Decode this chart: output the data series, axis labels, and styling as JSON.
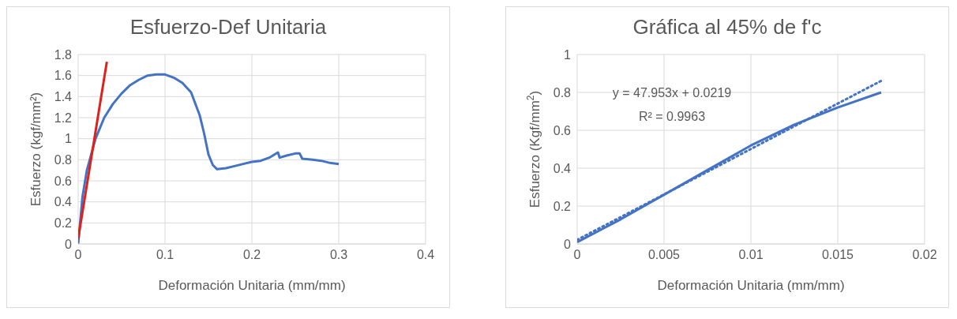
{
  "chart_data": [
    {
      "type": "line",
      "title": "Esfuerzo-Def Unitaria",
      "xlabel": "Deformación Unitaria (mm/mm)",
      "ylabel": "Esfuerzo (kgf/mm²)",
      "xlim": [
        0,
        0.4
      ],
      "xticks": [
        0,
        0.1,
        0.2,
        0.3,
        0.4
      ],
      "ylim": [
        0,
        1.8
      ],
      "yticks": [
        0,
        0.2,
        0.4,
        0.6,
        0.8,
        1,
        1.2,
        1.4,
        1.6,
        1.8
      ],
      "grid": true,
      "legend": false,
      "marker": "none",
      "series": [
        {
          "color": "#4472c4",
          "line_style": "solid",
          "x": [
            0,
            0.005,
            0.01,
            0.02,
            0.03,
            0.04,
            0.05,
            0.06,
            0.07,
            0.08,
            0.09,
            0.1,
            0.11,
            0.12,
            0.13,
            0.14,
            0.145,
            0.15,
            0.155,
            0.16,
            0.17,
            0.18,
            0.19,
            0.2,
            0.21,
            0.22,
            0.23,
            0.232,
            0.24,
            0.25,
            0.255,
            0.258,
            0.27,
            0.28,
            0.29,
            0.3
          ],
          "values": [
            0,
            0.45,
            0.7,
            1.0,
            1.2,
            1.33,
            1.43,
            1.51,
            1.56,
            1.6,
            1.61,
            1.61,
            1.58,
            1.53,
            1.44,
            1.22,
            1.05,
            0.85,
            0.75,
            0.71,
            0.72,
            0.74,
            0.76,
            0.78,
            0.79,
            0.82,
            0.87,
            0.82,
            0.84,
            0.86,
            0.86,
            0.81,
            0.8,
            0.79,
            0.77,
            0.76
          ]
        },
        {
          "color": "#e0201b",
          "line_style": "solid",
          "x": [
            0,
            0.033
          ],
          "values": [
            0.05,
            1.73
          ]
        }
      ]
    },
    {
      "type": "line",
      "title": "Gráfica al 45% de f'c",
      "xlabel": "Deformación Unitaria (mm/mm)",
      "ylabel": "Esfuerzo (Kgf/mm$^{2}$)",
      "xlim": [
        0,
        0.02
      ],
      "xticks": [
        0,
        0.005,
        0.01,
        0.015,
        0.02
      ],
      "ylim": [
        0,
        1
      ],
      "yticks": [
        0,
        0.2,
        0.4,
        0.6,
        0.8,
        1
      ],
      "grid": true,
      "legend": false,
      "marker": "none",
      "annotations": [
        "y = 47.953x + 0.0219",
        "R² = 0.9963"
      ],
      "series": [
        {
          "color": "#4472c4",
          "line_style": "solid",
          "x": [
            0,
            0.0025,
            0.005,
            0.0075,
            0.01,
            0.0125,
            0.015,
            0.0175
          ],
          "values": [
            0.01,
            0.13,
            0.26,
            0.39,
            0.52,
            0.63,
            0.72,
            0.8
          ]
        },
        {
          "color": "#4472c4",
          "line_style": "dotted",
          "x": [
            0,
            0.0175
          ],
          "values": [
            0.022,
            0.861
          ]
        }
      ]
    }
  ]
}
